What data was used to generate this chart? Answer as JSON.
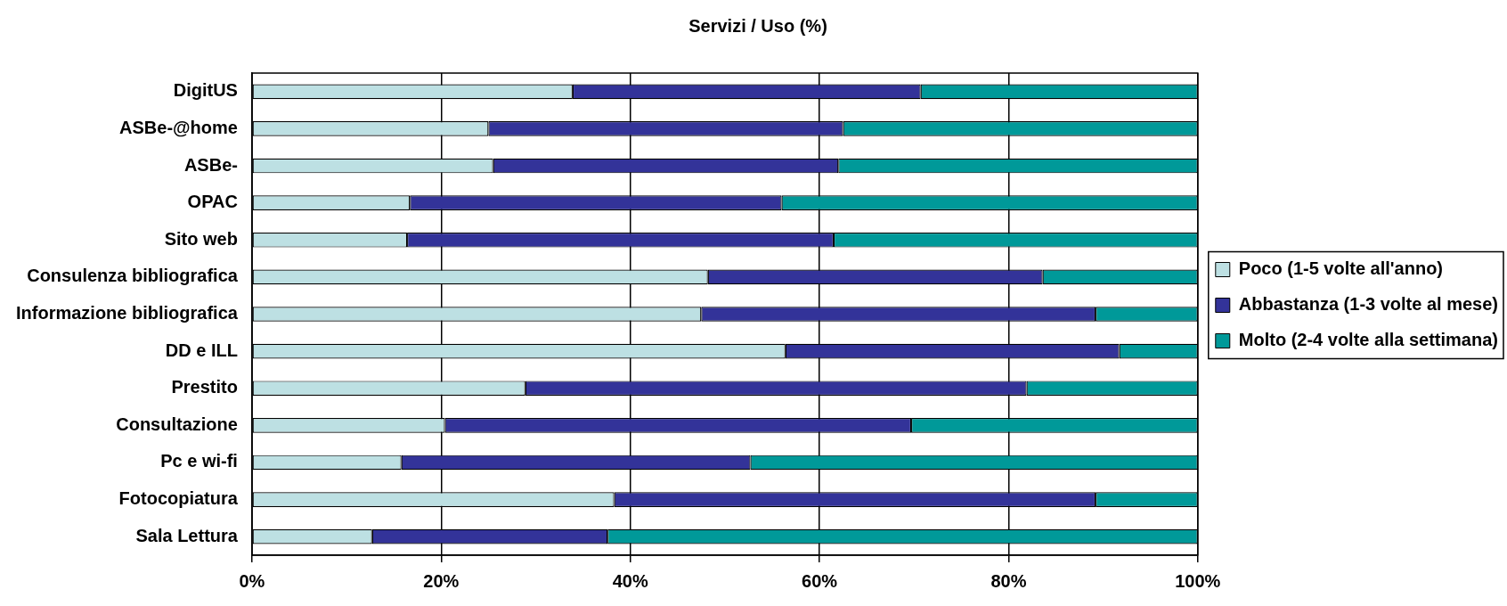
{
  "chart_data": {
    "type": "bar",
    "orientation": "horizontal",
    "stacked": true,
    "title": "Servizi / Uso (%)",
    "categories": [
      "DigitUS",
      "ASBe-@home",
      "ASBe-",
      "OPAC",
      "Sito web",
      "Consulenza bibliografica",
      "Informazione bibliografica",
      "DD e ILL",
      "Prestito",
      "Consultazione",
      "Pc e wi-fi",
      "Fotocopiatura",
      "Sala Lettura"
    ],
    "series": [
      {
        "name": "Poco (1-5 volte all'anno)",
        "color": "#bde0e3",
        "values": [
          33.9,
          25.0,
          25.5,
          16.7,
          16.4,
          48.2,
          47.5,
          56.4,
          28.9,
          20.4,
          15.8,
          38.3,
          12.7
        ]
      },
      {
        "name": "Abbastanza (1-3 volte al mese)",
        "color": "#333399",
        "values": [
          36.8,
          37.5,
          36.5,
          39.3,
          45.1,
          35.4,
          41.7,
          35.3,
          53.0,
          49.3,
          36.9,
          50.9,
          24.9
        ]
      },
      {
        "name": "Molto (2-4 volte alla settimana)",
        "color": "#009999",
        "values": [
          29.3,
          37.5,
          38.0,
          44.0,
          38.5,
          16.4,
          10.8,
          8.3,
          18.1,
          30.3,
          47.3,
          10.8,
          62.4
        ]
      }
    ],
    "xlim": [
      0,
      100
    ],
    "xticks": [
      {
        "value": 0,
        "label": "0%"
      },
      {
        "value": 20,
        "label": "20%"
      },
      {
        "value": 40,
        "label": "40%"
      },
      {
        "value": 60,
        "label": "60%"
      },
      {
        "value": 80,
        "label": "80%"
      },
      {
        "value": 100,
        "label": "100%"
      }
    ],
    "grid": "x",
    "legend": "right"
  }
}
